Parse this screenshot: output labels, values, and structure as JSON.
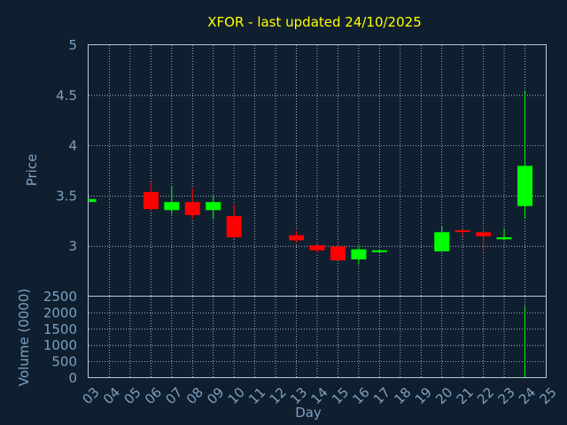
{
  "chart_data": [
    {
      "type": "candlestick",
      "title": "XFOR - last updated 24/10/2025",
      "ylabel": "Price",
      "ylim": [
        2.5,
        5
      ],
      "yticks": [
        "3",
        "3.5",
        "4",
        "4.5",
        "5"
      ],
      "grid": true,
      "x": [
        "03",
        "04",
        "05",
        "06",
        "07",
        "08",
        "09",
        "10",
        "11",
        "12",
        "13",
        "14",
        "15",
        "16",
        "17",
        "18",
        "19",
        "20",
        "21",
        "22",
        "23",
        "24",
        "25"
      ],
      "up_color": "#00ff00",
      "down_color": "#ff0000",
      "candles": [
        {
          "x": "03",
          "open": 3.44,
          "high": 3.48,
          "low": 3.44,
          "close": 3.47
        },
        {
          "x": "06",
          "open": 3.54,
          "high": 3.65,
          "low": 3.35,
          "close": 3.37
        },
        {
          "x": "07",
          "open": 3.36,
          "high": 3.6,
          "low": 3.32,
          "close": 3.44
        },
        {
          "x": "08",
          "open": 3.44,
          "high": 3.58,
          "low": 3.27,
          "close": 3.31
        },
        {
          "x": "09",
          "open": 3.36,
          "high": 3.5,
          "low": 3.27,
          "close": 3.44
        },
        {
          "x": "10",
          "open": 3.3,
          "high": 3.42,
          "low": 3.08,
          "close": 3.09
        },
        {
          "x": "13",
          "open": 3.11,
          "high": 3.15,
          "low": 3.04,
          "close": 3.06
        },
        {
          "x": "14",
          "open": 3.01,
          "high": 3.01,
          "low": 2.93,
          "close": 2.96
        },
        {
          "x": "15",
          "open": 3.0,
          "high": 3.0,
          "low": 2.86,
          "close": 2.86
        },
        {
          "x": "16",
          "open": 2.87,
          "high": 3.0,
          "low": 2.82,
          "close": 2.97
        },
        {
          "x": "17",
          "open": 2.95,
          "high": 2.97,
          "low": 2.93,
          "close": 2.96
        },
        {
          "x": "20",
          "open": 2.95,
          "high": 3.2,
          "low": 2.95,
          "close": 3.14
        },
        {
          "x": "21",
          "open": 3.16,
          "high": 3.17,
          "low": 3.1,
          "close": 3.15
        },
        {
          "x": "22",
          "open": 3.14,
          "high": 3.16,
          "low": 2.95,
          "close": 3.1
        },
        {
          "x": "23",
          "open": 3.07,
          "high": 3.17,
          "low": 3.06,
          "close": 3.09
        },
        {
          "x": "24",
          "open": 3.4,
          "high": 4.55,
          "low": 3.28,
          "close": 3.8
        }
      ]
    },
    {
      "type": "bar",
      "ylabel": "Volume (0000)",
      "xlabel": "Day",
      "ylim": [
        0,
        2500
      ],
      "yticks": [
        "0",
        "500",
        "1000",
        "1500",
        "2000",
        "2500"
      ],
      "grid": true,
      "categories": [
        "03",
        "04",
        "05",
        "06",
        "07",
        "08",
        "09",
        "10",
        "11",
        "12",
        "13",
        "14",
        "15",
        "16",
        "17",
        "18",
        "19",
        "20",
        "21",
        "22",
        "23",
        "24",
        "25"
      ],
      "values": [
        1,
        0,
        0,
        4,
        2,
        3,
        2,
        5,
        0,
        0,
        2,
        2,
        3,
        2,
        1,
        0,
        0,
        3,
        1,
        2,
        1,
        2200,
        0
      ],
      "bar_color": "#00ff00"
    }
  ]
}
